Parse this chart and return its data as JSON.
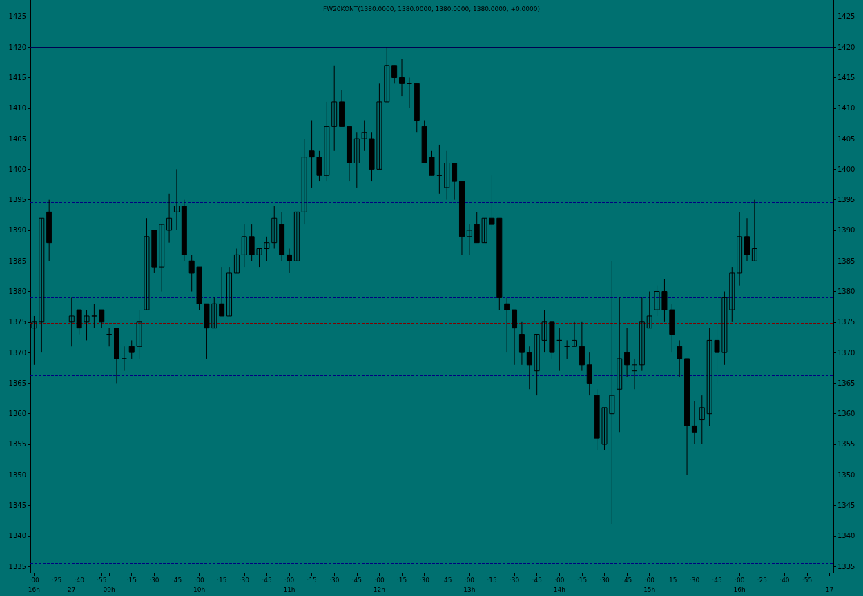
{
  "chart_data": {
    "type": "candlestick",
    "title": "FW20KONT(1380.0000, 1380.0000, 1380.0000, 1380.0000, +0.0000)",
    "color": "#000000",
    "categories": [
      ":00\n16h",
      null,
      null,
      ":25",
      null,
      "\n27",
      ":40",
      null,
      null,
      ":55",
      "\n09h",
      null,
      null,
      ":15",
      null,
      null,
      ":30",
      null,
      null,
      ":45",
      null,
      null,
      ":00\n10h",
      null,
      null,
      ":15",
      null,
      null,
      ":30",
      null,
      null,
      ":45",
      null,
      null,
      ":00\n11h",
      null,
      null,
      ":15",
      null,
      null,
      ":30",
      null,
      null,
      ":45",
      null,
      null,
      ":00\n12h",
      null,
      null,
      ":15",
      null,
      null,
      ":30",
      null,
      null,
      ":45",
      null,
      null,
      ":00\n13h",
      null,
      null,
      ":15",
      null,
      null,
      ":30",
      null,
      null,
      ":45",
      null,
      null,
      ":00\n14h",
      null,
      null,
      ":15",
      null,
      null,
      ":30",
      null,
      null,
      ":45",
      null,
      null,
      ":00\n15h",
      null,
      null,
      ":15",
      null,
      null,
      ":30",
      null,
      null,
      ":45",
      null,
      null,
      ":00\n16h",
      null,
      null,
      ":25",
      null,
      null,
      ":40",
      null,
      null,
      ":55",
      null,
      null,
      "\n17"
    ],
    "ohlc": [
      [
        1374,
        1376,
        1368,
        1375
      ],
      [
        1375,
        1392,
        1370,
        1392
      ],
      [
        1393,
        1395,
        1385,
        1388
      ],
      null,
      null,
      [
        1375,
        1379,
        1371,
        1376
      ],
      [
        1377,
        1377,
        1373,
        1374
      ],
      [
        1375,
        1377,
        1372,
        1376
      ],
      [
        1376,
        1378,
        1374,
        1376
      ],
      [
        1377,
        1377,
        1374,
        1375
      ],
      [
        1373,
        1374,
        1371,
        1373
      ],
      [
        1374,
        1374,
        1365,
        1369
      ],
      [
        1369,
        1371,
        1367,
        1369
      ],
      [
        1371,
        1372,
        1369,
        1370
      ],
      [
        1371,
        1377,
        1369,
        1375
      ],
      [
        1377,
        1392,
        1377,
        1389
      ],
      [
        1390,
        1390,
        1383,
        1384
      ],
      [
        1384,
        1391,
        1380,
        1391
      ],
      [
        1390,
        1396,
        1388,
        1392
      ],
      [
        1393,
        1400,
        1390,
        1394
      ],
      [
        1394,
        1395,
        1385,
        1386
      ],
      [
        1385,
        1386,
        1380,
        1383
      ],
      [
        1384,
        1384,
        1377,
        1378
      ],
      [
        1378,
        1378,
        1369,
        1374
      ],
      [
        1374,
        1379,
        1374,
        1378
      ],
      [
        1378,
        1384,
        1376,
        1376
      ],
      [
        1376,
        1384,
        1376,
        1383
      ],
      [
        1383,
        1387,
        1383,
        1386
      ],
      [
        1386,
        1391,
        1384,
        1389
      ],
      [
        1389,
        1391,
        1385,
        1386
      ],
      [
        1386,
        1387,
        1384,
        1387
      ],
      [
        1387,
        1389,
        1385,
        1388
      ],
      [
        1388,
        1394,
        1387,
        1392
      ],
      [
        1391,
        1393,
        1385,
        1386
      ],
      [
        1386,
        1387,
        1383,
        1385
      ],
      [
        1385,
        1393,
        1385,
        1393
      ],
      [
        1393,
        1405,
        1391,
        1402
      ],
      [
        1403,
        1408,
        1397,
        1402
      ],
      [
        1402,
        1403,
        1398,
        1399
      ],
      [
        1399,
        1411,
        1398,
        1407
      ],
      [
        1407,
        1417,
        1403,
        1411
      ],
      [
        1411,
        1413,
        1407,
        1407
      ],
      [
        1407,
        1407,
        1398,
        1401
      ],
      [
        1401,
        1406,
        1397,
        1405
      ],
      [
        1405,
        1408,
        1403,
        1406
      ],
      [
        1405,
        1406,
        1398,
        1400
      ],
      [
        1400,
        1414,
        1400,
        1411
      ],
      [
        1411,
        1420,
        1411,
        1417
      ],
      [
        1417,
        1417,
        1414,
        1415
      ],
      [
        1415,
        1418,
        1412,
        1414
      ],
      [
        1414,
        1415,
        1410,
        1414
      ],
      [
        1414,
        1414,
        1406,
        1408
      ],
      [
        1407,
        1408,
        1401,
        1401
      ],
      [
        1402,
        1403,
        1399,
        1399
      ],
      [
        1399,
        1404,
        1396,
        1399
      ],
      [
        1397,
        1403,
        1395,
        1401
      ],
      [
        1401,
        1401,
        1395,
        1398
      ],
      [
        1398,
        1398,
        1386,
        1389
      ],
      [
        1389,
        1391,
        1386,
        1390
      ],
      [
        1391,
        1393,
        1388,
        1388
      ],
      [
        1388,
        1392,
        1388,
        1392
      ],
      [
        1392,
        1399,
        1390,
        1391
      ],
      [
        1392,
        1392,
        1377,
        1379
      ],
      [
        1378,
        1379,
        1370,
        1377
      ],
      [
        1377,
        1377,
        1368,
        1374
      ],
      [
        1373,
        1375,
        1368,
        1370
      ],
      [
        1370,
        1371,
        1364,
        1368
      ],
      [
        1367,
        1373,
        1363,
        1373
      ],
      [
        1372,
        1377,
        1370,
        1375
      ],
      [
        1375,
        1375,
        1369,
        1370
      ],
      [
        1372,
        1374,
        1367,
        1372
      ],
      [
        1371,
        1372,
        1369,
        1371
      ],
      [
        1371,
        1375,
        1371,
        1372
      ],
      [
        1371,
        1375,
        1367,
        1368
      ],
      [
        1368,
        1370,
        1363,
        1365
      ],
      [
        1363,
        1364,
        1354,
        1356
      ],
      [
        1355,
        1361,
        1354,
        1361
      ],
      [
        1360,
        1385,
        1342,
        1363
      ],
      [
        1364,
        1379,
        1357,
        1369
      ],
      [
        1370,
        1374,
        1366,
        1368
      ],
      [
        1367,
        1369,
        1364,
        1368
      ],
      [
        1368,
        1379,
        1367,
        1375
      ],
      [
        1374,
        1380,
        1374,
        1376
      ],
      [
        1377,
        1381,
        1376,
        1380
      ],
      [
        1380,
        1382,
        1375,
        1377
      ],
      [
        1377,
        1378,
        1370,
        1373
      ],
      [
        1371,
        1372,
        1366,
        1369
      ],
      [
        1369,
        1369,
        1350,
        1358
      ],
      [
        1358,
        1362,
        1355,
        1357
      ],
      [
        1359,
        1363,
        1355,
        1361
      ],
      [
        1360,
        1374,
        1358,
        1372
      ],
      [
        1372,
        1375,
        1365,
        1370
      ],
      [
        1370,
        1380,
        1368,
        1379
      ],
      [
        1377,
        1384,
        1375,
        1383
      ],
      [
        1383,
        1393,
        1381,
        1389
      ],
      [
        1389,
        1392,
        1385,
        1386
      ],
      [
        1385,
        1395,
        1385,
        1387
      ],
      null,
      null,
      null,
      null,
      null,
      null,
      null,
      null,
      null,
      null
    ],
    "ylim": [
      1334,
      1427.7
    ],
    "yticks": [
      1335,
      1340,
      1345,
      1350,
      1355,
      1360,
      1365,
      1370,
      1375,
      1380,
      1385,
      1390,
      1395,
      1400,
      1405,
      1410,
      1415,
      1420,
      1425
    ],
    "y2lim": [
      1334,
      1427.7
    ],
    "y2ticks": [
      1335,
      1340,
      1345,
      1350,
      1355,
      1360,
      1365,
      1370,
      1375,
      1380,
      1385,
      1390,
      1395,
      1400,
      1405,
      1410,
      1415,
      1420,
      1425
    ],
    "ref_lines": [
      {
        "axis": "y",
        "value": 1420,
        "color": "#000050",
        "line_style": "solid"
      },
      {
        "axis": "y",
        "value": 1417.4,
        "color": "#800000",
        "line_style": "dashed"
      },
      {
        "axis": "y",
        "value": 1394.6,
        "color": "#000080",
        "line_style": "dashed"
      },
      {
        "axis": "y",
        "value": 1379,
        "color": "#000080",
        "line_style": "dashed"
      },
      {
        "axis": "y",
        "value": 1374.8,
        "color": "#800000",
        "line_style": "dashed"
      },
      {
        "axis": "y",
        "value": 1366.3,
        "color": "#000080",
        "line_style": "dashed"
      },
      {
        "axis": "y",
        "value": 1353.6,
        "color": "#000080",
        "line_style": "dashed"
      },
      {
        "axis": "y",
        "value": 1335.6,
        "color": "#000080",
        "line_style": "dashed"
      }
    ]
  }
}
